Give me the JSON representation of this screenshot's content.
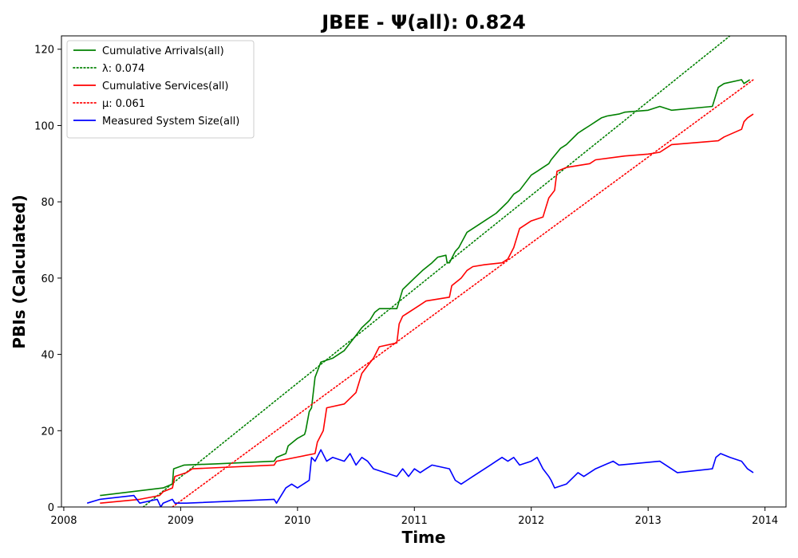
{
  "chart_data": {
    "type": "line",
    "title": "JBEE -  Ψ(all): 0.824",
    "xlabel": "Time",
    "ylabel": "PBIs (Calculated)",
    "xlim": [
      2007.98,
      2014.18
    ],
    "ylim": [
      0,
      123.5
    ],
    "xticks": [
      2008,
      2009,
      2010,
      2011,
      2012,
      2013,
      2014
    ],
    "yticks": [
      0,
      20,
      40,
      60,
      80,
      100,
      120
    ],
    "xtick_labels": [
      "2008",
      "2009",
      "2010",
      "2011",
      "2012",
      "2013",
      "2014"
    ],
    "ytick_labels": [
      "0",
      "20",
      "40",
      "60",
      "80",
      "100",
      "120"
    ],
    "grid": false,
    "legend_position": "top-left",
    "series": [
      {
        "name": "Cumulative Arrivals(all)",
        "color": "#008000",
        "style": "solid",
        "x": [
          2008.31,
          2008.85,
          2008.93,
          2008.94,
          2009.03,
          2009.3,
          2009.8,
          2009.82,
          2009.9,
          2009.92,
          2010.0,
          2010.06,
          2010.07,
          2010.1,
          2010.12,
          2010.15,
          2010.2,
          2010.3,
          2010.4,
          2010.5,
          2010.55,
          2010.62,
          2010.66,
          2010.7,
          2010.85,
          2010.88,
          2010.9,
          2011.0,
          2011.07,
          2011.15,
          2011.2,
          2011.27,
          2011.28,
          2011.3,
          2011.35,
          2011.38,
          2011.45,
          2011.55,
          2011.6,
          2011.7,
          2011.8,
          2011.85,
          2011.9,
          2012.0,
          2012.05,
          2012.1,
          2012.15,
          2012.17,
          2012.25,
          2012.3,
          2012.4,
          2012.45,
          2012.5,
          2012.55,
          2012.6,
          2012.65,
          2012.75,
          2012.8,
          2013.0,
          2013.1,
          2013.2,
          2013.55,
          2013.58,
          2013.6,
          2013.65,
          2013.8,
          2013.82,
          2013.87
        ],
        "values": [
          3,
          5,
          6,
          10,
          11,
          11.3,
          12,
          13,
          14,
          16,
          18,
          19,
          20,
          25,
          26,
          34,
          38,
          39,
          41,
          45,
          47,
          49,
          51,
          52,
          52,
          55,
          57,
          60,
          62,
          64,
          65.5,
          66,
          64,
          64,
          67,
          68,
          72,
          74,
          75,
          77,
          80,
          82,
          83,
          87,
          88,
          89,
          90,
          91,
          94,
          95,
          98,
          99,
          100,
          101,
          102,
          102.5,
          103,
          103.5,
          104,
          105,
          104,
          105,
          108,
          110,
          111,
          112,
          111,
          112
        ]
      },
      {
        "name": "λ: 0.074",
        "color": "#008000",
        "style": "dotted",
        "x": [
          2008.68,
          2013.7
        ],
        "values": [
          0,
          123.5
        ]
      },
      {
        "name": "Cumulative Services(all)",
        "color": "#ff0000",
        "style": "solid",
        "x": [
          2008.31,
          2008.65,
          2008.82,
          2008.85,
          2008.93,
          2008.95,
          2009.05,
          2009.1,
          2009.8,
          2009.82,
          2010.15,
          2010.17,
          2010.22,
          2010.25,
          2010.4,
          2010.5,
          2010.55,
          2010.6,
          2010.65,
          2010.7,
          2010.85,
          2010.87,
          2010.9,
          2011.0,
          2011.05,
          2011.1,
          2011.3,
          2011.32,
          2011.4,
          2011.45,
          2011.5,
          2011.6,
          2011.75,
          2011.8,
          2011.85,
          2011.9,
          2012.0,
          2012.1,
          2012.12,
          2012.15,
          2012.2,
          2012.22,
          2012.3,
          2012.4,
          2012.5,
          2012.55,
          2012.8,
          2013.0,
          2013.1,
          2013.2,
          2013.6,
          2013.65,
          2013.8,
          2013.82,
          2013.85,
          2013.9
        ],
        "values": [
          1,
          2,
          3,
          4,
          5,
          8,
          9,
          10,
          11,
          12,
          14,
          17,
          20,
          26,
          27,
          30,
          35,
          37,
          39,
          42,
          43,
          48,
          50,
          52,
          53,
          54,
          55,
          58,
          60,
          62,
          63,
          63.5,
          64,
          65,
          68,
          73,
          75,
          76,
          78,
          81,
          83,
          88,
          89,
          89.5,
          90,
          91,
          92,
          92.5,
          93,
          95,
          96,
          97,
          99,
          101,
          102,
          103
        ]
      },
      {
        "name": "μ: 0.061",
        "color": "#ff0000",
        "style": "dotted",
        "x": [
          2008.93,
          2013.9
        ],
        "values": [
          0,
          112
        ]
      },
      {
        "name": "Measured System Size(all)",
        "color": "#0000ff",
        "style": "solid",
        "x": [
          2008.2,
          2008.31,
          2008.6,
          2008.65,
          2008.8,
          2008.83,
          2008.85,
          2008.93,
          2008.95,
          2009.05,
          2009.8,
          2009.82,
          2009.9,
          2009.95,
          2010.0,
          2010.1,
          2010.12,
          2010.15,
          2010.2,
          2010.25,
          2010.3,
          2010.4,
          2010.45,
          2010.5,
          2010.55,
          2010.6,
          2010.65,
          2010.85,
          2010.9,
          2010.95,
          2011.0,
          2011.05,
          2011.1,
          2011.15,
          2011.3,
          2011.35,
          2011.4,
          2011.45,
          2011.5,
          2011.65,
          2011.7,
          2011.75,
          2011.8,
          2011.85,
          2011.9,
          2012.0,
          2012.05,
          2012.1,
          2012.15,
          2012.17,
          2012.2,
          2012.3,
          2012.4,
          2012.45,
          2012.55,
          2012.7,
          2012.75,
          2013.1,
          2013.25,
          2013.55,
          2013.58,
          2013.62,
          2013.7,
          2013.8,
          2013.85,
          2013.9
        ],
        "values": [
          1,
          2,
          3,
          1,
          2,
          0,
          1,
          2,
          1,
          1,
          2,
          1,
          5,
          6,
          5,
          7,
          13,
          12,
          15,
          12,
          13,
          12,
          14,
          11,
          13,
          12,
          10,
          8,
          10,
          8,
          10,
          9,
          10,
          11,
          10,
          7,
          6,
          7,
          8,
          11,
          12,
          13,
          12,
          13,
          11,
          12,
          13,
          10,
          8,
          7,
          5,
          6,
          9,
          8,
          10,
          12,
          11,
          12,
          9,
          10,
          13,
          14,
          13,
          12,
          10,
          9
        ]
      }
    ]
  }
}
